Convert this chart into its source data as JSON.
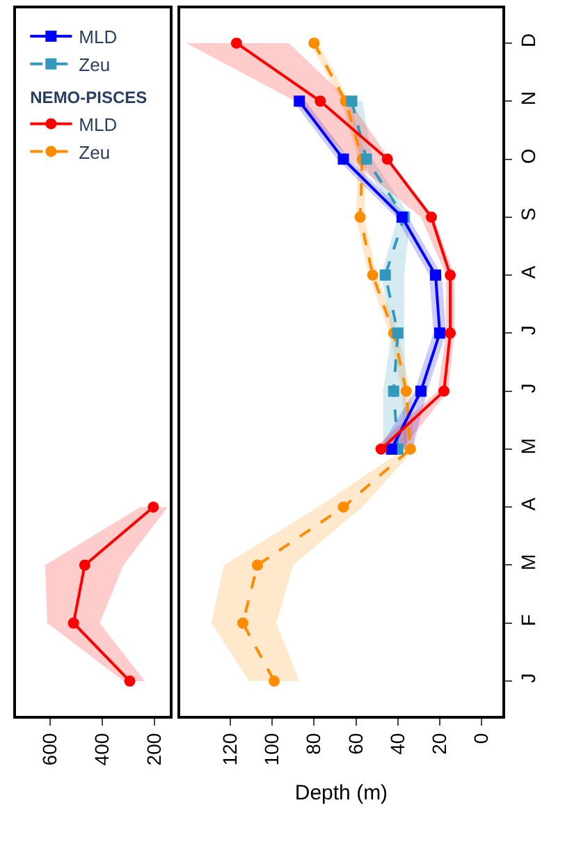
{
  "chart_data": [
    {
      "type": "line",
      "orientation": "horizontal",
      "categories": [
        null,
        null,
        null,
        null,
        null,
        null,
        null,
        null,
        null,
        null,
        null,
        null
      ],
      "xlim": [
        730,
        143
      ],
      "xticks": [
        200,
        400,
        600
      ],
      "legend": "top",
      "legend_title": "NEMO-PISCES",
      "tick_labels": "x",
      "series": [
        {
          "name": "MLD",
          "color": "#0000ff",
          "marker": "square",
          "line_style": "solid",
          "values": [
            null,
            null,
            null,
            null,
            null,
            null,
            null,
            null,
            null,
            null,
            null,
            null
          ]
        },
        {
          "name": "Zeu",
          "color": "#3399bb",
          "marker": "square",
          "line_style": "dashed",
          "values": [
            null,
            null,
            null,
            null,
            null,
            null,
            null,
            null,
            null,
            null,
            null,
            null
          ]
        },
        {
          "name": "MLD",
          "color": "#ff0000",
          "marker": "circle",
          "line_style": "solid",
          "values": [
            null,
            null,
            null,
            null,
            null,
            null,
            null,
            null,
            205,
            467,
            510,
            295
          ],
          "lower": [
            null,
            null,
            null,
            null,
            null,
            null,
            null,
            null,
            150,
            319,
            410,
            238
          ],
          "upper": [
            null,
            null,
            null,
            null,
            null,
            null,
            null,
            null,
            255,
            619,
            610,
            319
          ]
        },
        {
          "name": "Zeu",
          "color": "#ff8c00",
          "marker": "circle",
          "line_style": "dashed",
          "values": [
            null,
            null,
            null,
            null,
            null,
            null,
            null,
            null,
            null,
            null,
            null,
            null
          ]
        }
      ]
    },
    {
      "type": "line",
      "orientation": "horizontal",
      "categories": [
        "D",
        "N",
        "O",
        "S",
        "A",
        "J",
        "J",
        "M",
        "A",
        "M",
        "F",
        "J"
      ],
      "xlim": [
        144,
        -10
      ],
      "xticks": [
        0,
        20,
        40,
        60,
        80,
        100,
        120
      ],
      "xlabel": "Depth (m)",
      "series": [
        {
          "color": "#ff8c00",
          "marker": "circle",
          "line_style": "dashed",
          "values": [
            80,
            65,
            57,
            58,
            52,
            42,
            36,
            34,
            66,
            107,
            114,
            99
          ],
          "lower": [
            78,
            63,
            55,
            56,
            50,
            40,
            34,
            32,
            57,
            90,
            98,
            87
          ],
          "upper": [
            82,
            67,
            59,
            60,
            54,
            44,
            38,
            37,
            78,
            123,
            129,
            111
          ]
        },
        {
          "color": "#3399bb",
          "marker": "square",
          "line_style": "dashed",
          "values": [
            null,
            62,
            55,
            37,
            46,
            40,
            42,
            40,
            null,
            null,
            null,
            null
          ],
          "lower": [
            null,
            57,
            52,
            34,
            37,
            37,
            36,
            36,
            null,
            null,
            null,
            null
          ],
          "upper": [
            null,
            64,
            58,
            40,
            48,
            43,
            47,
            47,
            null,
            null,
            null,
            null
          ]
        },
        {
          "color": "#0000ff",
          "marker": "square",
          "line_style": "solid",
          "values": [
            null,
            87,
            66,
            38,
            22,
            20,
            29,
            43,
            null,
            null,
            null,
            null
          ],
          "lower": [
            null,
            84,
            63,
            35,
            19,
            17,
            26,
            33,
            null,
            null,
            null,
            null
          ],
          "upper": [
            null,
            90,
            69,
            41,
            25,
            23,
            32,
            49,
            null,
            null,
            null,
            null
          ]
        },
        {
          "color": "#ff0000",
          "marker": "circle",
          "line_style": "solid",
          "values": [
            117,
            77,
            45,
            24,
            15,
            15,
            18,
            48,
            null,
            null,
            null,
            null
          ],
          "lower": [
            92,
            63,
            44,
            23,
            13,
            13,
            16,
            38,
            null,
            null,
            null,
            null
          ],
          "upper": [
            141,
            89,
            63,
            29,
            17,
            17,
            21,
            52,
            null,
            null,
            null,
            null
          ]
        }
      ]
    }
  ]
}
